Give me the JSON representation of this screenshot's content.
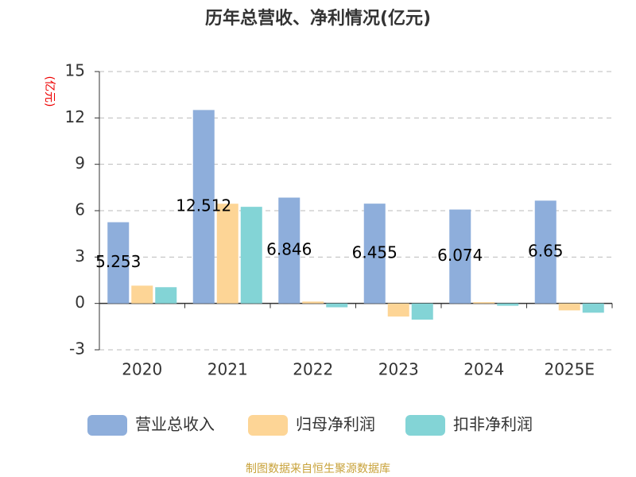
{
  "chart_data": {
    "type": "bar",
    "title": "历年总营收、净利情况(亿元)",
    "y_label": "(亿元)",
    "source": "制图数据来自恒生聚源数据库",
    "categories": [
      "2020",
      "2021",
      "2022",
      "2023",
      "2024",
      "2025E"
    ],
    "series": [
      {
        "name": "营业总收入",
        "color": "#8eaedb",
        "values": [
          5.253,
          12.512,
          6.846,
          6.455,
          6.074,
          6.65
        ]
      },
      {
        "name": "归母净利润",
        "color": "#fdd596",
        "values": [
          1.15,
          6.45,
          0.12,
          -0.85,
          0.08,
          -0.45
        ]
      },
      {
        "name": "扣非净利润",
        "color": "#83d4d6",
        "values": [
          1.05,
          6.25,
          -0.25,
          -1.05,
          -0.15,
          -0.6
        ]
      }
    ],
    "ylim": [
      -3,
      15
    ],
    "yticks": [
      -3,
      0,
      3,
      6,
      9,
      12,
      15
    ],
    "grid": true
  }
}
